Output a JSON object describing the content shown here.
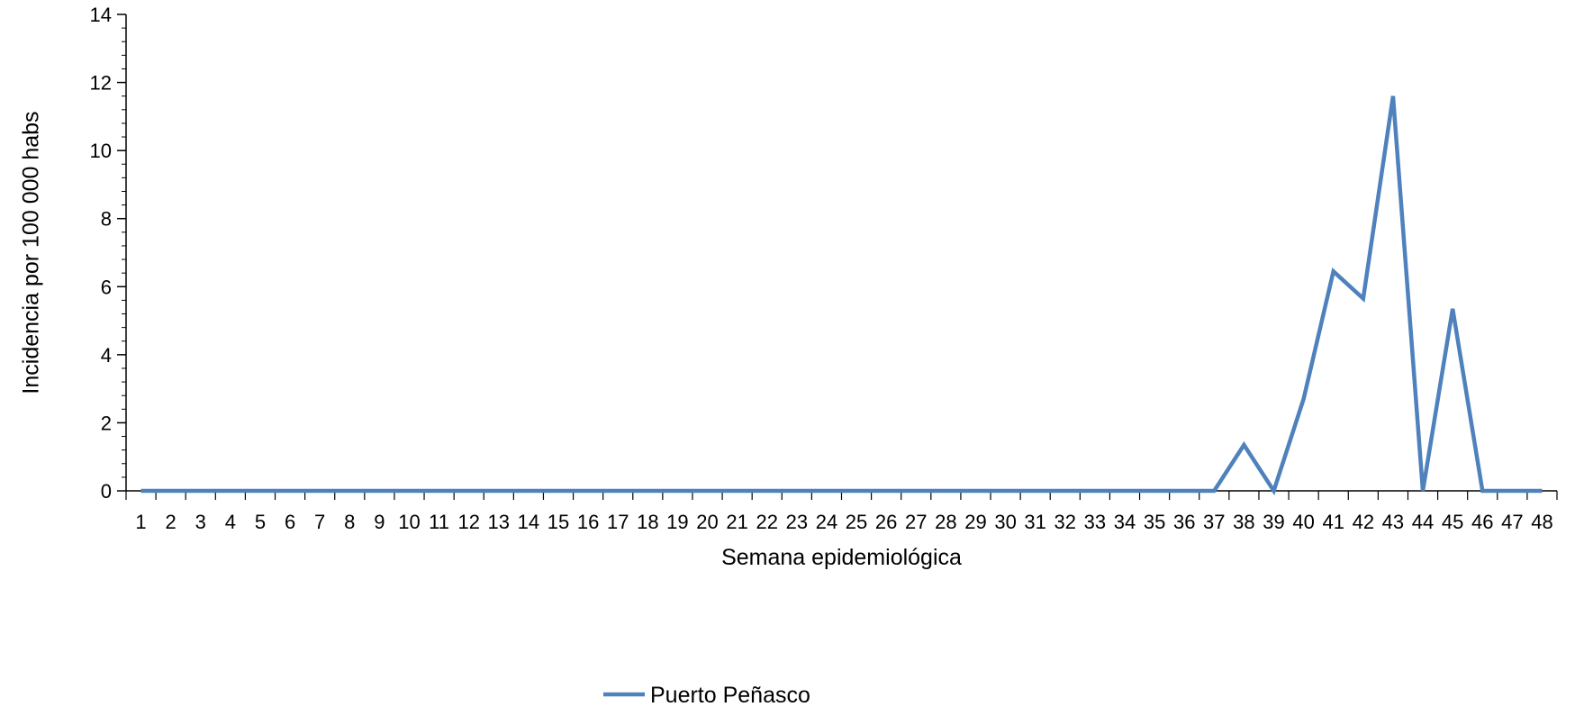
{
  "chart_data": {
    "type": "line",
    "title": "",
    "xlabel": "Semana epidemiológica",
    "ylabel": "Incidencia por 100 000 habs",
    "x": [
      1,
      2,
      3,
      4,
      5,
      6,
      7,
      8,
      9,
      10,
      11,
      12,
      13,
      14,
      15,
      16,
      17,
      18,
      19,
      20,
      21,
      22,
      23,
      24,
      25,
      26,
      27,
      28,
      29,
      30,
      31,
      32,
      33,
      34,
      35,
      36,
      37,
      38,
      39,
      40,
      41,
      42,
      43,
      44,
      45,
      46,
      47,
      48
    ],
    "ylim": [
      0,
      14
    ],
    "yticks": [
      0,
      2,
      4,
      6,
      8,
      10,
      12,
      14
    ],
    "grid": false,
    "legend_position": "bottom",
    "series": [
      {
        "name": "Puerto Peñasco",
        "color": "#4f81bd",
        "values": [
          0,
          0,
          0,
          0,
          0,
          0,
          0,
          0,
          0,
          0,
          0,
          0,
          0,
          0,
          0,
          0,
          0,
          0,
          0,
          0,
          0,
          0,
          0,
          0,
          0,
          0,
          0,
          0,
          0,
          0,
          0,
          0,
          0,
          0,
          0,
          0,
          0,
          1.35,
          0,
          2.7,
          6.45,
          5.65,
          11.6,
          0,
          5.35,
          0,
          0,
          0
        ]
      }
    ]
  }
}
